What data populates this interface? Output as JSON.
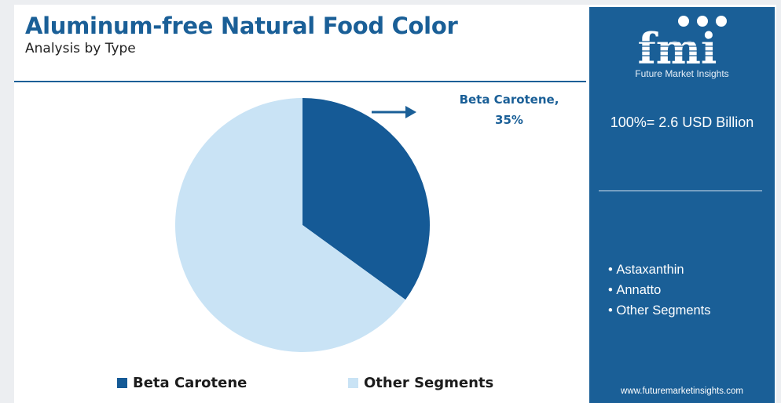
{
  "header": {
    "title": "Aluminum-free Natural Food Color",
    "subtitle": "Analysis by Type"
  },
  "chart_data": {
    "type": "pie",
    "title": "Aluminum-free Natural Food Color",
    "subtitle": "Analysis by Type",
    "slices": [
      {
        "name": "Beta Carotene",
        "value": 35,
        "color": "#155a96"
      },
      {
        "name": "Other Segments",
        "value": 65,
        "color": "#c9e3f5"
      }
    ],
    "callout": {
      "label": "Beta Carotene,",
      "value": "35%"
    },
    "legend": {
      "position": "bottom",
      "items": [
        {
          "label": "Beta Carotene",
          "color": "#155a96"
        },
        {
          "label": "Other Segments",
          "color": "#c9e3f5"
        }
      ]
    }
  },
  "side_panel": {
    "brand": "fmi",
    "brand_subtitle": "Future Market Insights",
    "total": "100%= 2.6 USD Billion",
    "other_segments": [
      "Astaxanthin",
      "Annatto",
      "Other Segments"
    ],
    "website": "www.futuremarketinsights.com",
    "background_color": "#1a5f97"
  }
}
